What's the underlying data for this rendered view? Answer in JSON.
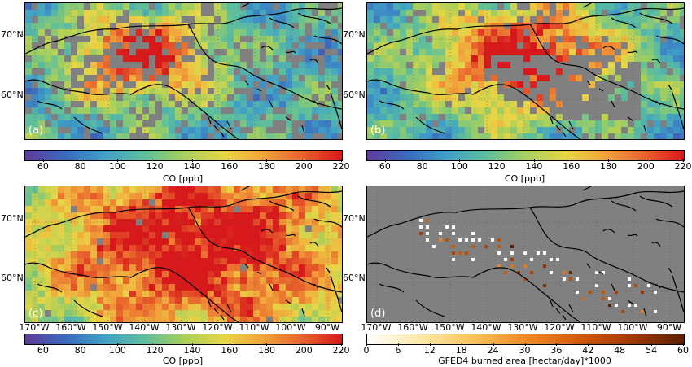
{
  "panels": [
    {
      "id": "a",
      "label": "(a)",
      "mode": "co",
      "seed": 11
    },
    {
      "id": "b",
      "label": "(b)",
      "mode": "co",
      "seed": 23
    },
    {
      "id": "c",
      "label": "(c)",
      "mode": "co",
      "seed": 37
    },
    {
      "id": "d",
      "label": "(d)",
      "mode": "fire",
      "seed": 53
    }
  ],
  "lat_labels": [
    "70°N",
    "60°N"
  ],
  "lon_labels": [
    "170°W",
    "160°W",
    "150°W",
    "140°W",
    "130°W",
    "120°W",
    "110°W",
    "100°W",
    "90°W"
  ],
  "colorbars": [
    {
      "id": "cb-a",
      "ticks": [
        "60",
        "80",
        "100",
        "120",
        "140",
        "160",
        "180",
        "200",
        "220"
      ],
      "title": "CO [ppb]",
      "colormap": "spectral"
    },
    {
      "id": "cb-b",
      "ticks": [
        "60",
        "80",
        "100",
        "120",
        "140",
        "160",
        "180",
        "200",
        "220"
      ],
      "title": "CO [ppb]",
      "colormap": "spectral"
    },
    {
      "id": "cb-c",
      "ticks": [
        "60",
        "80",
        "100",
        "120",
        "140",
        "160",
        "180",
        "200",
        "220"
      ],
      "title": "CO [ppb]",
      "colormap": "spectral"
    },
    {
      "id": "cb-d",
      "ticks": [
        "0",
        "6",
        "12",
        "18",
        "24",
        "30",
        "36",
        "42",
        "48",
        "54",
        "60"
      ],
      "title": "GFED4 burned area [hectar/day]*1000",
      "colormap": "heat"
    }
  ],
  "colors": {
    "nodata": "#808080",
    "coast": "#000000",
    "spectral": [
      "#5e3c99",
      "#3b6bbf",
      "#3fa0c8",
      "#5fbf9a",
      "#a7cf5b",
      "#e8d645",
      "#f2a33a",
      "#e8602c",
      "#d7191c"
    ],
    "heat": [
      "#ffffff",
      "#fde9a6",
      "#f9c35c",
      "#f08a25",
      "#d45a0a",
      "#a33a04",
      "#5c1f02"
    ]
  }
}
